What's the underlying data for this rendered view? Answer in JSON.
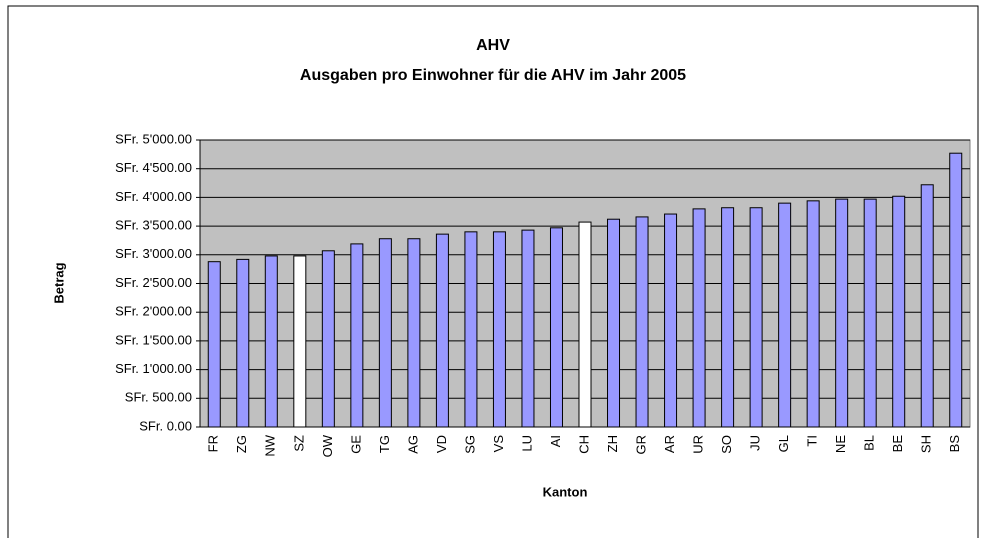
{
  "chart_data": {
    "type": "bar",
    "title": "AHV",
    "subtitle": "Ausgaben pro Einwohner für die AHV im Jahr 2005",
    "x_label": "Kanton",
    "y_label": "Betrag",
    "categories": [
      "FR",
      "ZG",
      "NW",
      "SZ",
      "OW",
      "GE",
      "TG",
      "AG",
      "VD",
      "SG",
      "VS",
      "LU",
      "AI",
      "CH",
      "ZH",
      "GR",
      "AR",
      "UR",
      "SO",
      "JU",
      "GL",
      "TI",
      "NE",
      "BL",
      "BE",
      "SH",
      "BS"
    ],
    "values": [
      2880,
      2920,
      2980,
      2980,
      3070,
      3190,
      3280,
      3280,
      3360,
      3400,
      3400,
      3430,
      3470,
      3570,
      3620,
      3660,
      3710,
      3800,
      3820,
      3820,
      3900,
      3940,
      3970,
      3970,
      4020,
      4220,
      4770
    ],
    "colors": [
      "#9999ff",
      "#9999ff",
      "#9999ff",
      "#ffffff",
      "#9999ff",
      "#9999ff",
      "#9999ff",
      "#9999ff",
      "#9999ff",
      "#9999ff",
      "#9999ff",
      "#9999ff",
      "#9999ff",
      "#ffffff",
      "#9999ff",
      "#9999ff",
      "#9999ff",
      "#9999ff",
      "#9999ff",
      "#9999ff",
      "#9999ff",
      "#9999ff",
      "#9999ff",
      "#9999ff",
      "#9999ff",
      "#9999ff",
      "#9999ff"
    ],
    "ylim": [
      0,
      5000
    ],
    "yticks": [
      {
        "value": 0,
        "label": "SFr. 0.00"
      },
      {
        "value": 500,
        "label": "SFr. 500.00"
      },
      {
        "value": 1000,
        "label": "SFr. 1'000.00"
      },
      {
        "value": 1500,
        "label": "SFr. 1'500.00"
      },
      {
        "value": 2000,
        "label": "SFr. 2'000.00"
      },
      {
        "value": 2500,
        "label": "SFr. 2'500.00"
      },
      {
        "value": 3000,
        "label": "SFr. 3'000.00"
      },
      {
        "value": 3500,
        "label": "SFr. 3'500.00"
      },
      {
        "value": 4000,
        "label": "SFr. 4'000.00"
      },
      {
        "value": 4500,
        "label": "SFr. 4'500.00"
      },
      {
        "value": 5000,
        "label": "SFr. 5'000.00"
      }
    ],
    "grid": true,
    "plot_background": "#c0c0c0"
  }
}
